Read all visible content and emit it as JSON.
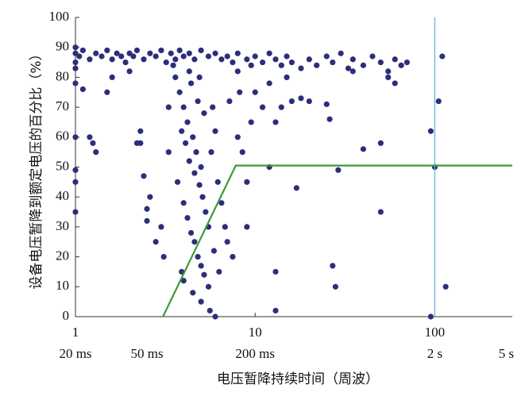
{
  "chart_data": {
    "type": "scatter",
    "x_label": "电压暂降持续时间（周波）",
    "y_label": "设备电压暂降到额定电压的百分比（%）",
    "log_x": true,
    "xlim": [
      1,
      270
    ],
    "ylim": [
      0,
      100
    ],
    "xticks": [
      1,
      10,
      100
    ],
    "xticks_secondary": [
      {
        "value": 1,
        "label": "20 ms"
      },
      {
        "value": 2.5,
        "label": "50 ms"
      },
      {
        "value": 10,
        "label": "200 ms"
      },
      {
        "value": 100,
        "label": "2 s"
      },
      {
        "value": 250,
        "label": "5 s"
      }
    ],
    "yticks": [
      0,
      10,
      20,
      30,
      40,
      50,
      60,
      70,
      80,
      90,
      100
    ],
    "color": "#2b2f7a",
    "x": [
      1,
      1,
      1,
      1,
      1.05,
      1.1,
      1.2,
      1.3,
      1.4,
      1.5,
      1.6,
      1.7,
      1.8,
      1.9,
      2,
      2.1,
      2.2,
      2.4,
      2.6,
      2.8,
      3,
      3.2,
      3.4,
      3.6,
      3.8,
      4,
      4.3,
      4.6,
      5,
      5.5,
      6,
      6.5,
      7,
      7.5,
      8,
      9,
      10,
      11,
      12,
      13,
      14,
      15,
      16,
      18,
      20,
      22,
      25,
      27,
      30,
      33,
      35,
      40,
      45,
      50,
      55,
      60,
      65,
      70,
      110,
      1,
      1,
      1,
      1,
      1,
      1.1,
      1.2,
      1.25,
      1.3,
      1.6,
      1.5,
      2,
      2.3,
      2.3,
      2.4,
      2.5,
      2.5,
      2.2,
      2.6,
      2.8,
      3,
      3.1,
      3.3,
      3.3,
      3.6,
      3.8,
      4,
      4.2,
      4.4,
      4.5,
      4.7,
      4.8,
      5,
      5.2,
      3.9,
      4.1,
      4.3,
      4.6,
      4.9,
      5.1,
      5.3,
      5.5,
      3.7,
      4,
      4.2,
      4.4,
      4.6,
      4.8,
      5,
      5.2,
      5.5,
      4.5,
      5,
      5.6,
      6,
      3.9,
      4,
      5.7,
      6,
      5.8,
      4.9,
      3.5,
      4.3,
      6.2,
      6.5,
      6.8,
      7,
      7.5,
      6.3,
      5.9,
      8,
      8.5,
      9,
      9.5,
      7.2,
      8.2,
      9,
      10,
      11,
      12,
      13,
      14,
      15,
      17,
      16,
      18,
      20,
      25,
      13,
      13,
      26,
      27,
      28,
      29,
      40,
      50,
      50,
      95,
      95,
      100,
      105,
      115,
      55,
      60,
      35,
      12,
      8,
      9.5
    ],
    "values": [
      88,
      85,
      83,
      90,
      87,
      89,
      86,
      88,
      87,
      89,
      86,
      88,
      87,
      85,
      88,
      87,
      89,
      86,
      88,
      87,
      89,
      85,
      88,
      86,
      89,
      87,
      88,
      86,
      89,
      87,
      88,
      86,
      87,
      85,
      88,
      86,
      87,
      85,
      88,
      86,
      84,
      87,
      85,
      83,
      86,
      84,
      87,
      85,
      88,
      83,
      86,
      84,
      87,
      85,
      82,
      86,
      84,
      85,
      87,
      78,
      60,
      49,
      45,
      35,
      76,
      60,
      58,
      55,
      80,
      75,
      82,
      62,
      58,
      47,
      36,
      32,
      58,
      40,
      25,
      30,
      20,
      55,
      70,
      80,
      75,
      70,
      65,
      78,
      60,
      55,
      72,
      50,
      68,
      62,
      58,
      52,
      48,
      44,
      40,
      35,
      30,
      45,
      38,
      33,
      28,
      25,
      20,
      17,
      14,
      10,
      8,
      5,
      2,
      0,
      15,
      12,
      55,
      62,
      70,
      80,
      84,
      82,
      45,
      38,
      30,
      25,
      20,
      15,
      22,
      60,
      55,
      45,
      65,
      72,
      75,
      30,
      75,
      70,
      50,
      65,
      70,
      80,
      43,
      72,
      73,
      72,
      71,
      15,
      2,
      66,
      17,
      10,
      49,
      56,
      58,
      35,
      62,
      0,
      50,
      72,
      10,
      80,
      78,
      82,
      78,
      82,
      84
    ],
    "reference_lines": [
      {
        "color": "#3a9a3a",
        "x": [
          3.07,
          7.8,
          270
        ],
        "values": [
          0,
          50.5,
          50.5
        ]
      },
      {
        "color": "#5aaee0",
        "x": [
          100,
          100
        ],
        "values": [
          0,
          100
        ]
      }
    ]
  }
}
